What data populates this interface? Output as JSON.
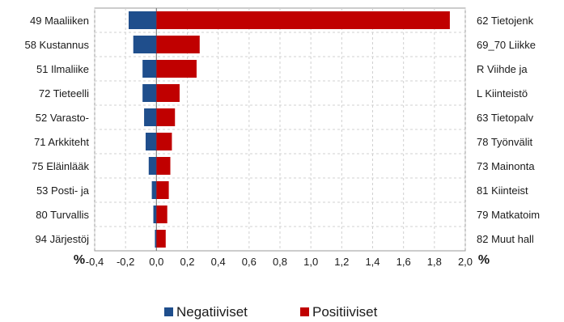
{
  "chart_data": {
    "type": "bar",
    "orientation": "horizontal-diverging",
    "left_categories": [
      "49 Maaliiken",
      "58 Kustannus",
      "51 Ilmaliike",
      "72 Tieteelli",
      "52 Varasto-",
      "71 Arkkiteht",
      "75 Eläinlääk",
      "53 Posti- ja",
      "80 Turvallis",
      "94 Järjestöj"
    ],
    "right_categories": [
      "62 Tietojenk",
      "69_70 Liikke",
      "R Viihde ja",
      "L Kiinteistö",
      "63 Tietopalv",
      "78 Työnvälit",
      "73 Mainonta",
      "81 Kiinteist",
      "79 Matkatoim",
      "82 Muut hall"
    ],
    "series": [
      {
        "name": "Negatiiviset",
        "color": "#1f4e8c",
        "values": [
          -0.18,
          -0.15,
          -0.09,
          -0.09,
          -0.08,
          -0.07,
          -0.05,
          -0.03,
          -0.02,
          -0.01
        ]
      },
      {
        "name": "Positiiviset",
        "color": "#c00000",
        "values": [
          1.9,
          0.28,
          0.26,
          0.15,
          0.12,
          0.1,
          0.09,
          0.08,
          0.07,
          0.06
        ]
      }
    ],
    "xlim": [
      -0.4,
      2.0
    ],
    "xticks": [
      "-0,4",
      "-0,2",
      "0,0",
      "0,2",
      "0,4",
      "0,6",
      "0,8",
      "1,0",
      "1,2",
      "1,4",
      "1,6",
      "1,8",
      "2,0"
    ],
    "xlabel": "%",
    "xlabel_right": "%",
    "grid": true,
    "legend_position": "bottom"
  }
}
